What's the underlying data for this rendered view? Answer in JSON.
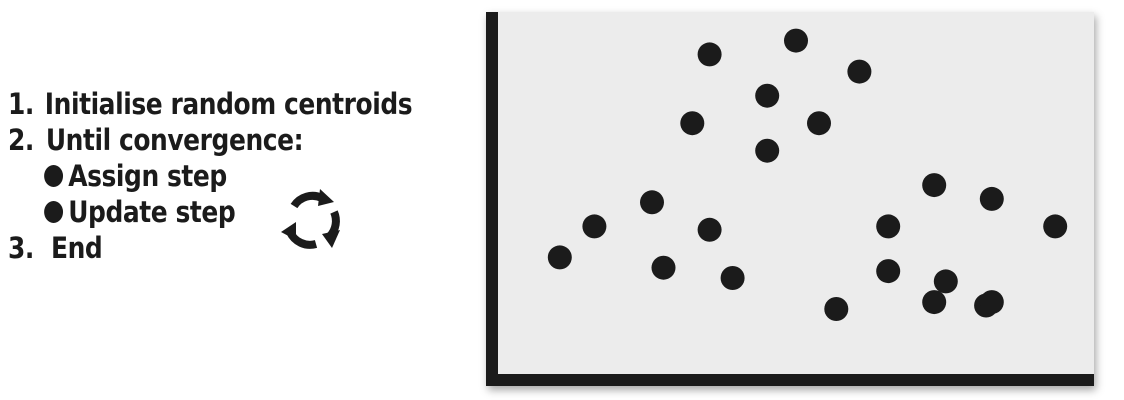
{
  "steps": [
    {
      "number": "1.",
      "text": "Initialise random centroids"
    },
    {
      "number": "2.",
      "text": "Until convergence:"
    },
    {
      "bullet": "Assign step"
    },
    {
      "bullet": "Update step"
    },
    {
      "number": "3.",
      "text": "End"
    }
  ],
  "icons": {
    "cycle": "refresh-cycle-icon",
    "bullet": "filled-circle-bullet"
  },
  "colors": {
    "ink": "#1b1b1b",
    "plot_background": "#ececec"
  },
  "chart_data": {
    "type": "scatter",
    "title": "",
    "xlabel": "",
    "ylabel": "",
    "xlim": [
      0,
      100
    ],
    "ylim": [
      0,
      100
    ],
    "grid": false,
    "series": [
      {
        "x": [
          35,
          50,
          61,
          45,
          32,
          54,
          45,
          25,
          15,
          35,
          84,
          66,
          74,
          95,
          57,
          9,
          27,
          39,
          66,
          76,
          74,
          83,
          84
        ],
        "y": [
          90,
          94,
          85,
          78,
          70,
          70,
          62,
          47,
          40,
          39,
          48,
          40,
          52,
          40,
          16,
          31,
          28,
          25,
          27,
          24,
          18,
          17,
          18
        ]
      }
    ]
  }
}
